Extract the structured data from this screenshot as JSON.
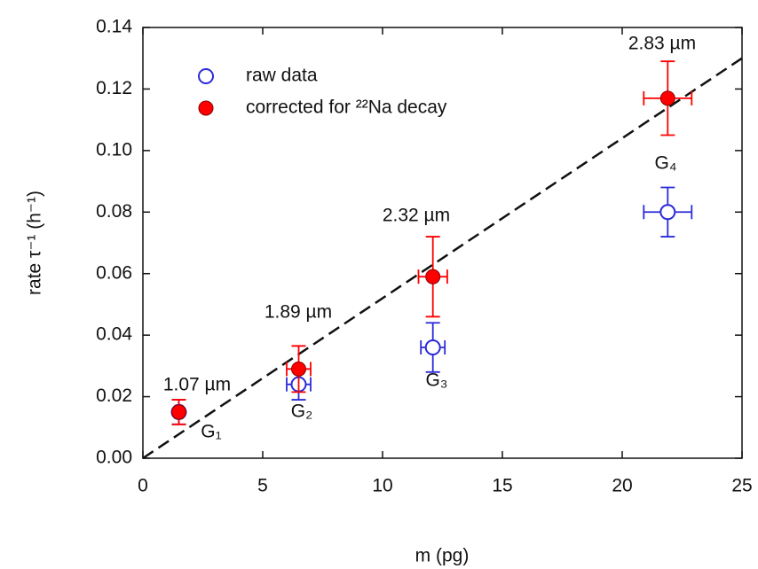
{
  "chart_data": {
    "type": "scatter",
    "x_label": "m (pg)",
    "y_label": "rate τ⁻¹ (h⁻¹)",
    "xlim": [
      0,
      25
    ],
    "xticks": [
      0,
      5,
      10,
      15,
      20,
      25
    ],
    "ylim": [
      0,
      0.14
    ],
    "yticks": [
      {
        "value": 0,
        "label": "0.00"
      },
      {
        "value": 0.02,
        "label": "0.02"
      },
      {
        "value": 0.04,
        "label": "0.04"
      },
      {
        "value": 0.06,
        "label": "0.06"
      },
      {
        "value": 0.08,
        "label": "0.08"
      },
      {
        "value": 0.1,
        "label": "0.10"
      },
      {
        "value": 0.12,
        "label": "0.12"
      },
      {
        "value": 0.14,
        "label": "0.14"
      }
    ],
    "legend": "upper left",
    "series": [
      {
        "name": "raw data",
        "color": "#2b2bd9",
        "marker": "open",
        "x": [
          1.5,
          6.5,
          12.1,
          21.9
        ],
        "values": [
          0.015,
          0.024,
          0.036,
          0.08
        ],
        "xerr": [
          0.15,
          0.5,
          0.5,
          1.0
        ],
        "yerr": [
          0.004,
          0.005,
          0.008,
          0.008
        ]
      },
      {
        "name": "corrected for ²²Na decay",
        "color": "#ff0000",
        "marker": "filled",
        "x": [
          1.5,
          6.5,
          12.1,
          21.9
        ],
        "values": [
          0.015,
          0.029,
          0.059,
          0.117
        ],
        "xerr": [
          0.15,
          0.5,
          0.6,
          1.0
        ],
        "yerr": [
          0.004,
          0.0075,
          0.013,
          0.012
        ]
      }
    ],
    "fit": {
      "x": [
        0,
        25
      ],
      "values": [
        0,
        0.13
      ]
    },
    "annotations": [
      "1.07 µm",
      "1.89 µm",
      "2.32 µm",
      "2.83 µm"
    ],
    "group_labels": [
      "G₁",
      "G₂",
      "G₃",
      "G₄"
    ]
  }
}
